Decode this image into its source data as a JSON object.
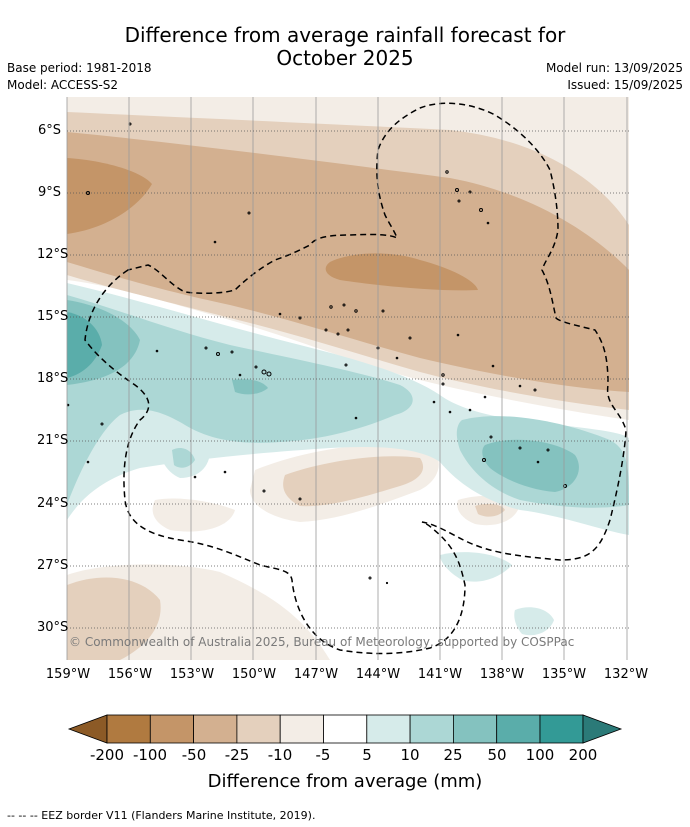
{
  "title": {
    "line1": "Difference from average rainfall forecast for",
    "line2": "October 2025"
  },
  "meta": {
    "base_period": "Base period: 1981-2018",
    "model": "Model: ACCESS-S2",
    "model_run": "Model run: 13/09/2025",
    "issued": "Issued: 15/09/2025"
  },
  "map": {
    "lat_labels": [
      "6°S",
      "9°S",
      "12°S",
      "15°S",
      "18°S",
      "21°S",
      "24°S",
      "27°S",
      "30°S"
    ],
    "lon_labels": [
      "159°W",
      "156°W",
      "153°W",
      "150°W",
      "147°W",
      "144°W",
      "141°W",
      "138°W",
      "135°W",
      "132°W"
    ],
    "copyright": "© Commonwealth of Australia 2025, Bureau of Meteorology, supported by COSPPac",
    "colors": {
      "lt_m200": "#8c5a26",
      "m200_m100": "#b07a40",
      "m100_m50": "#c49568",
      "m50_m25": "#d3b090",
      "m25_m10": "#e4d0bd",
      "m10_m5": "#f3ede6",
      "m5_p5": "#ffffff",
      "p5_p10": "#d6ebea",
      "p10_p25": "#acd7d5",
      "p25_p50": "#84c2bf",
      "p50_p100": "#5aadaa",
      "p100_p200": "#339a96",
      "gt_p200": "#2b7a78"
    }
  },
  "colorbar": {
    "labels": [
      "-200",
      "-100",
      "-50",
      "-25",
      "-10",
      "-5",
      "5",
      "10",
      "25",
      "50",
      "100",
      "200"
    ],
    "title": "Difference from average (mm)"
  },
  "footer": "--  --  -- EEZ border V11 (Flanders Marine Institute, 2019)."
}
